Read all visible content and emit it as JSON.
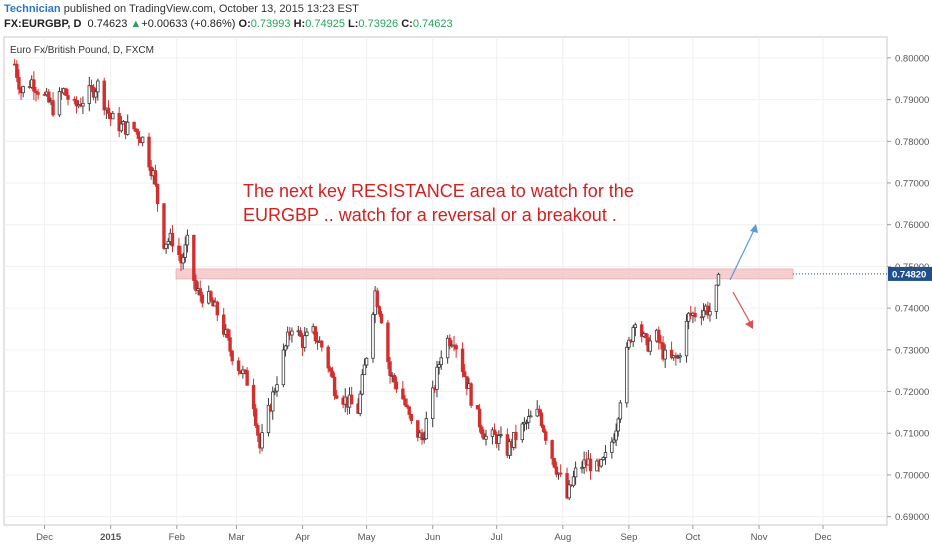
{
  "header": {
    "author": "Technician",
    "published_text": "published on TradingView.com, October 13, 2015 13:23 EST",
    "symbol": "FX:EURGBP, D",
    "last": "0.74623",
    "change_arrow": "▲",
    "change": "+0.00633 (+0.86%)",
    "open_label": "O:",
    "open": "0.73993",
    "high_label": "H:",
    "high": "0.74925",
    "low_label": "L:",
    "low": "0.73926",
    "close_label": "C:",
    "close": "0.74623"
  },
  "chart_data": {
    "type": "candlestick",
    "title": "Euro Fx/British Pound, D, FXCM",
    "x_ticks": [
      "Dec",
      "2015",
      "Feb",
      "Mar",
      "Apr",
      "May",
      "Jun",
      "Jul",
      "Aug",
      "Sep",
      "Oct",
      "Nov",
      "Dec"
    ],
    "y_ticks": [
      "0.80000",
      "0.79000",
      "0.78000",
      "0.77000",
      "0.76000",
      "0.75000",
      "0.74000",
      "0.73000",
      "0.72000",
      "0.71000",
      "0.70000",
      "0.69000"
    ],
    "ylim": [
      0.688,
      0.805
    ],
    "price_label": "0.74820",
    "resistance_level": 0.7482,
    "close_series": [
      {
        "date": "2014-11-17",
        "close": 0.7985
      },
      {
        "date": "2014-11-20",
        "close": 0.792
      },
      {
        "date": "2014-11-25",
        "close": 0.7945
      },
      {
        "date": "2014-12-01",
        "close": 0.7905
      },
      {
        "date": "2014-12-05",
        "close": 0.788
      },
      {
        "date": "2014-12-10",
        "close": 0.792
      },
      {
        "date": "2014-12-15",
        "close": 0.788
      },
      {
        "date": "2014-12-20",
        "close": 0.7905
      },
      {
        "date": "2014-12-26",
        "close": 0.7935
      },
      {
        "date": "2015-01-01",
        "close": 0.7855
      },
      {
        "date": "2015-01-06",
        "close": 0.7835
      },
      {
        "date": "2015-01-12",
        "close": 0.783
      },
      {
        "date": "2015-01-16",
        "close": 0.7805
      },
      {
        "date": "2015-01-21",
        "close": 0.772
      },
      {
        "date": "2015-01-26",
        "close": 0.756
      },
      {
        "date": "2015-01-31",
        "close": 0.7565
      },
      {
        "date": "2015-02-03",
        "close": 0.751
      },
      {
        "date": "2015-02-06",
        "close": 0.7555
      },
      {
        "date": "2015-02-10",
        "close": 0.744
      },
      {
        "date": "2015-02-16",
        "close": 0.742
      },
      {
        "date": "2015-02-21",
        "close": 0.738
      },
      {
        "date": "2015-02-26",
        "close": 0.73
      },
      {
        "date": "2015-03-03",
        "close": 0.725
      },
      {
        "date": "2015-03-08",
        "close": 0.721
      },
      {
        "date": "2015-03-12",
        "close": 0.7065
      },
      {
        "date": "2015-03-17",
        "close": 0.717
      },
      {
        "date": "2015-03-22",
        "close": 0.727
      },
      {
        "date": "2015-03-27",
        "close": 0.736
      },
      {
        "date": "2015-04-01",
        "close": 0.732
      },
      {
        "date": "2015-04-06",
        "close": 0.734
      },
      {
        "date": "2015-04-11",
        "close": 0.73
      },
      {
        "date": "2015-04-16",
        "close": 0.721
      },
      {
        "date": "2015-04-21",
        "close": 0.718
      },
      {
        "date": "2015-04-27",
        "close": 0.7155
      },
      {
        "date": "2015-05-01",
        "close": 0.729
      },
      {
        "date": "2015-05-05",
        "close": 0.744
      },
      {
        "date": "2015-05-08",
        "close": 0.738
      },
      {
        "date": "2015-05-12",
        "close": 0.724
      },
      {
        "date": "2015-05-17",
        "close": 0.72
      },
      {
        "date": "2015-05-22",
        "close": 0.712
      },
      {
        "date": "2015-05-27",
        "close": 0.7085
      },
      {
        "date": "2015-06-01",
        "close": 0.719
      },
      {
        "date": "2015-06-06",
        "close": 0.732
      },
      {
        "date": "2015-06-11",
        "close": 0.733
      },
      {
        "date": "2015-06-16",
        "close": 0.724
      },
      {
        "date": "2015-06-21",
        "close": 0.715
      },
      {
        "date": "2015-06-26",
        "close": 0.709
      },
      {
        "date": "2015-07-01",
        "close": 0.709
      },
      {
        "date": "2015-07-06",
        "close": 0.706
      },
      {
        "date": "2015-07-11",
        "close": 0.71
      },
      {
        "date": "2015-07-16",
        "close": 0.713
      },
      {
        "date": "2015-07-21",
        "close": 0.715
      },
      {
        "date": "2015-07-26",
        "close": 0.706
      },
      {
        "date": "2015-07-31",
        "close": 0.699
      },
      {
        "date": "2015-08-03",
        "close": 0.6945
      },
      {
        "date": "2015-08-08",
        "close": 0.702
      },
      {
        "date": "2015-08-13",
        "close": 0.703
      },
      {
        "date": "2015-08-18",
        "close": 0.701
      },
      {
        "date": "2015-08-23",
        "close": 0.706
      },
      {
        "date": "2015-08-26",
        "close": 0.712
      },
      {
        "date": "2015-08-31",
        "close": 0.729
      },
      {
        "date": "2015-09-04",
        "close": 0.738
      },
      {
        "date": "2015-09-09",
        "close": 0.731
      },
      {
        "date": "2015-09-14",
        "close": 0.733
      },
      {
        "date": "2015-09-19",
        "close": 0.727
      },
      {
        "date": "2015-09-24",
        "close": 0.728
      },
      {
        "date": "2015-09-29",
        "close": 0.738
      },
      {
        "date": "2015-10-03",
        "close": 0.739
      },
      {
        "date": "2015-10-07",
        "close": 0.74
      },
      {
        "date": "2015-10-10",
        "close": 0.739
      },
      {
        "date": "2015-10-13",
        "close": 0.7462
      }
    ],
    "annotations": [
      {
        "text": "The next key RESISTANCE area to watch for the"
      },
      {
        "text": "EURGBP .. watch for a reversal or a breakout ."
      }
    ],
    "colors": {
      "up": "#3a3a3a",
      "down": "#d32f2f",
      "zone": "#f4c2c4",
      "text": "#d32020",
      "up_arrow": "#5b9bd5",
      "down_arrow": "#e05050",
      "label_bg": "#1f4e8c"
    }
  }
}
